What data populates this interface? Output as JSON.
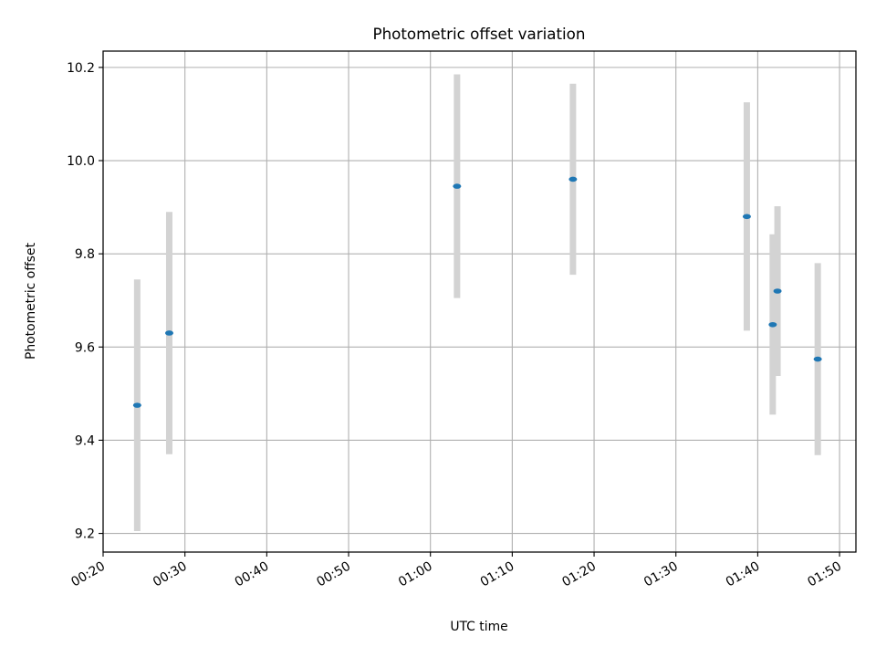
{
  "chart_data": {
    "type": "scatter",
    "title": "Photometric offset variation",
    "xlabel": "UTC time",
    "ylabel": "Photometric offset",
    "xlim": [
      "00:20",
      "01:52"
    ],
    "ylim": [
      9.16,
      10.235
    ],
    "x_ticks": [
      "00:20",
      "00:30",
      "00:40",
      "00:50",
      "01:00",
      "01:10",
      "01:20",
      "01:30",
      "01:40",
      "01:50"
    ],
    "y_ticks": [
      "9.2",
      "9.4",
      "9.6",
      "9.8",
      "10.0",
      "10.2"
    ],
    "grid": true,
    "series": [
      {
        "marker_color": "#1f77b4",
        "errorbar_color": "#d3d3d3",
        "points": [
          {
            "x": "00:24:10",
            "y": 9.475,
            "ylo": 9.205,
            "yhi": 9.745
          },
          {
            "x": "00:28:05",
            "y": 9.63,
            "ylo": 9.37,
            "yhi": 9.89
          },
          {
            "x": "01:03:15",
            "y": 9.945,
            "ylo": 9.705,
            "yhi": 10.185
          },
          {
            "x": "01:17:25",
            "y": 9.96,
            "ylo": 9.755,
            "yhi": 10.165
          },
          {
            "x": "01:38:40",
            "y": 9.88,
            "ylo": 9.635,
            "yhi": 10.125
          },
          {
            "x": "01:41:50",
            "y": 9.648,
            "ylo": 9.455,
            "yhi": 9.842
          },
          {
            "x": "01:42:25",
            "y": 9.72,
            "ylo": 9.538,
            "yhi": 9.902
          },
          {
            "x": "01:47:20",
            "y": 9.574,
            "ylo": 9.368,
            "yhi": 9.78
          }
        ]
      }
    ]
  }
}
